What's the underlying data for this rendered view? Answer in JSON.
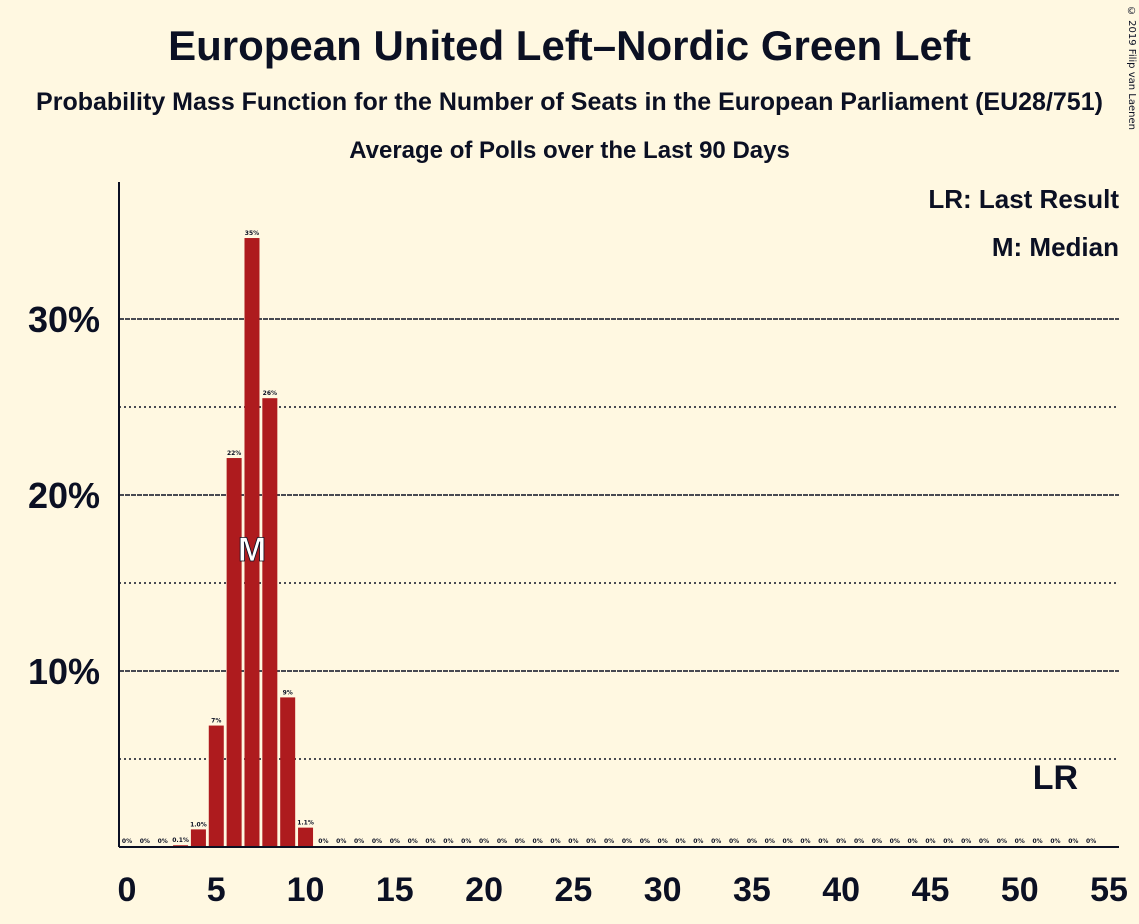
{
  "header": {
    "title": "European United Left–Nordic Green Left",
    "subtitle": "Probability Mass Function for the Number of Seats in the European Parliament (EU28/751)",
    "subtitle2": "Average of Polls over the Last 90 Days",
    "copyright": "© 2019 Filip van Laenen"
  },
  "legend": {
    "last_result": "LR: Last Result",
    "median": "M: Median"
  },
  "colors": {
    "background": "#FFF8E1",
    "bar": "#AE1B1E",
    "text": "#0B1023"
  },
  "chart_data": {
    "type": "bar",
    "title": "European United Left–Nordic Green Left",
    "xlabel": "",
    "ylabel": "",
    "x": [
      0,
      1,
      2,
      3,
      4,
      5,
      6,
      7,
      8,
      9,
      10,
      11,
      12,
      13,
      14,
      15,
      16,
      17,
      18,
      19,
      20,
      21,
      22,
      23,
      24,
      25,
      26,
      27,
      28,
      29,
      30,
      31,
      32,
      33,
      34,
      35,
      36,
      37,
      38,
      39,
      40,
      41,
      42,
      43,
      44,
      45,
      46,
      47,
      48,
      49,
      50,
      51,
      52,
      53,
      54
    ],
    "values": [
      0,
      0,
      0,
      0.1,
      1.0,
      6.9,
      22.1,
      34.6,
      25.5,
      8.5,
      1.1,
      0,
      0,
      0,
      0,
      0,
      0,
      0,
      0,
      0,
      0,
      0,
      0,
      0,
      0,
      0,
      0,
      0,
      0,
      0,
      0,
      0,
      0,
      0,
      0,
      0,
      0,
      0,
      0,
      0,
      0,
      0,
      0,
      0,
      0,
      0,
      0,
      0,
      0,
      0,
      0,
      0,
      0,
      0,
      0
    ],
    "data_labels": [
      "0%",
      "0%",
      "0%",
      "0.1%",
      "1.0%",
      "7%",
      "22%",
      "35%",
      "26%",
      "9%",
      "1.1%",
      "0%",
      "0%",
      "0%",
      "0%",
      "0%",
      "0%",
      "0%",
      "0%",
      "0%",
      "0%",
      "0%",
      "0%",
      "0%",
      "0%",
      "0%",
      "0%",
      "0%",
      "0%",
      "0%",
      "0%",
      "0%",
      "0%",
      "0%",
      "0%",
      "0%",
      "0%",
      "0%",
      "0%",
      "0%",
      "0%",
      "0%",
      "0%",
      "0%",
      "0%",
      "0%",
      "0%",
      "0%",
      "0%",
      "0%",
      "0%",
      "0%",
      "0%",
      "0%",
      "0%"
    ],
    "xlim": [
      0,
      55
    ],
    "ylim": [
      0,
      37.5
    ],
    "x_ticks": [
      0,
      5,
      10,
      15,
      20,
      25,
      30,
      35,
      40,
      45,
      50,
      55
    ],
    "x_tick_labels": [
      "0",
      "5",
      "10",
      "15",
      "20",
      "25",
      "30",
      "35",
      "40",
      "45",
      "50",
      "55"
    ],
    "y_major_ticks": [
      10,
      20,
      30
    ],
    "y_tick_labels": [
      "10%",
      "20%",
      "30%"
    ],
    "y_minor_gridlines": [
      5,
      15,
      25
    ],
    "median": {
      "seats": 7,
      "label": "M"
    },
    "last_result": {
      "seats": 52,
      "label": "LR"
    },
    "grid": true,
    "legend_position": "top-right"
  }
}
